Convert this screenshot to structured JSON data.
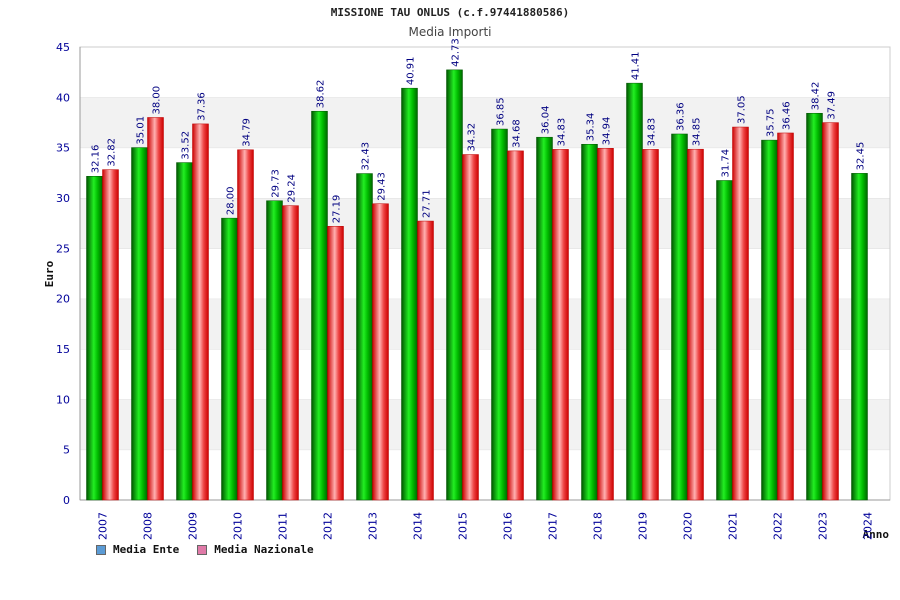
{
  "chart_data": {
    "type": "bar",
    "title": "MISSIONE TAU ONLUS (c.f.97441880586)",
    "subtitle": "Media Importi",
    "xlabel": "Anno",
    "ylabel": "Euro",
    "ylim": [
      0,
      45
    ],
    "yticks": [
      0,
      5,
      10,
      15,
      20,
      25,
      30,
      35,
      40,
      45
    ],
    "categories": [
      "2007",
      "2008",
      "2009",
      "2010",
      "2011",
      "2012",
      "2013",
      "2014",
      "2015",
      "2016",
      "2017",
      "2018",
      "2019",
      "2020",
      "2021",
      "2022",
      "2023",
      "2024"
    ],
    "series": [
      {
        "name": "Media Ente",
        "values": [
          32.16,
          35.01,
          33.52,
          28.0,
          29.73,
          38.62,
          32.43,
          40.91,
          42.73,
          36.85,
          36.04,
          35.34,
          41.41,
          36.36,
          31.74,
          35.75,
          38.42,
          32.45
        ],
        "labels": [
          "32.16",
          "35.01",
          "33.52",
          "28.00",
          "29.73",
          "38.62",
          "32.43",
          "40.91",
          "42.73",
          "36.85",
          "36.04",
          "35.34",
          "41.41",
          "36.36",
          "31.74",
          "35.75",
          "38.42",
          "32.45"
        ],
        "legend_color": "#5b9bd5"
      },
      {
        "name": "Media Nazionale",
        "values": [
          32.82,
          38.0,
          37.36,
          34.79,
          29.24,
          27.19,
          29.43,
          27.71,
          34.32,
          34.68,
          34.83,
          34.94,
          34.83,
          34.85,
          37.05,
          36.46,
          37.49,
          null
        ],
        "labels": [
          "32.82",
          "38.00",
          "37.36",
          "34.79",
          "29.24",
          "27.19",
          "29.43",
          "27.71",
          "34.32",
          "34.68",
          "34.83",
          "34.94",
          "34.83",
          "34.85",
          "37.05",
          "36.46",
          "37.49",
          null
        ],
        "legend_color": "#e07aa8"
      }
    ],
    "legend_position": "bottom-left",
    "grid": true
  },
  "colors": {
    "green_dark": "#006600",
    "green_light": "#33ff33",
    "red_dark": "#cc0000",
    "red_light": "#ffaaaa",
    "band": "#f2f2f2",
    "axis_text": "#000099",
    "value_text": "#000080"
  }
}
